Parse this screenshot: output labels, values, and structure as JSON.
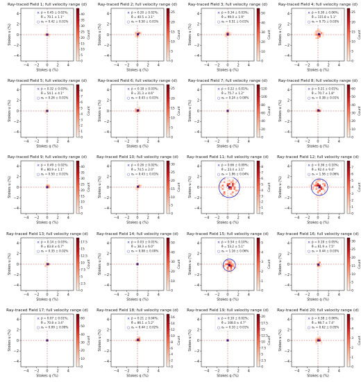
{
  "axis_labels": {
    "x": "Stokes q (%)",
    "y": "Stokes u (%)",
    "cbar": "Count"
  },
  "legend_symbols": {
    "pbar": "×",
    "sigma": "○"
  },
  "colors": {
    "accent_blue": "#1f2bbf",
    "guide_red": "#c44e4e",
    "cmap_low": "#fff5eb",
    "cmap_high": "#67000d"
  },
  "chart_data": [
    {
      "type": "heatmap",
      "title": "Ray-traced Field 1; full velocity range (d)",
      "xlim": [
        -5,
        5
      ],
      "ylim": [
        -5,
        5
      ],
      "xticks": [
        -4,
        -2,
        0,
        2,
        4
      ],
      "yticks": [
        -4,
        -2,
        0,
        2,
        4
      ],
      "cbar_ticks": [
        0,
        5,
        10,
        15,
        20,
        25,
        30,
        35,
        40
      ],
      "cbar_max": 45,
      "center_q": 0.0,
      "center_u": 0.0,
      "spread": 0.35,
      "nblobs": 14,
      "legend": [
        "p̄ = 0.45 ± 0.02%;",
        "θ̄ = 70.1 ± 1.1°",
        "σₚ = 0.42 ± 0.01%"
      ]
    },
    {
      "type": "heatmap",
      "title": "Ray-traced Field 2; full velocity range (d)",
      "xlim": [
        -5,
        5
      ],
      "ylim": [
        -5,
        5
      ],
      "xticks": [
        -4,
        -2,
        0,
        2,
        4
      ],
      "yticks": [
        -4,
        -2,
        0,
        2,
        4
      ],
      "cbar_ticks": [
        0,
        5,
        10,
        15,
        20,
        25
      ],
      "cbar_max": 27,
      "center_q": 0.1,
      "center_u": 0.1,
      "spread": 0.45,
      "nblobs": 16,
      "legend": [
        "p̄ = 0.20 ± 0.02%;",
        "θ̄ = 40.5 ± 3.1°",
        "σₚ = 0.50 ± 0.01%"
      ]
    },
    {
      "type": "heatmap",
      "title": "Ray-traced Field 3; full velocity range (d)",
      "xlim": [
        -5,
        5
      ],
      "ylim": [
        -5,
        5
      ],
      "xticks": [
        -4,
        -2,
        0,
        2,
        4
      ],
      "yticks": [
        -4,
        -2,
        0,
        2,
        4
      ],
      "cbar_ticks": [
        0,
        10,
        20,
        30,
        40,
        50
      ],
      "cbar_max": 55,
      "center_q": 0.0,
      "center_u": 0.1,
      "spread": 0.45,
      "nblobs": 16,
      "legend": [
        "p̄ = 0.34 ± 0.03%;",
        "θ̄ = 99.0 ± 1.9°",
        "σₚ = 0.51 ± 0.01%"
      ]
    },
    {
      "type": "heatmap",
      "title": "Ray-traced Field 4; full velocity range (d)",
      "xlim": [
        -5,
        5
      ],
      "ylim": [
        -5,
        5
      ],
      "xticks": [
        -4,
        -2,
        0,
        2,
        4
      ],
      "yticks": [
        -4,
        -2,
        0,
        2,
        4
      ],
      "cbar_ticks": [
        0,
        5,
        10,
        15,
        20,
        25
      ],
      "cbar_max": 27,
      "center_q": 0.2,
      "center_u": 0.1,
      "spread": 0.75,
      "nblobs": 22,
      "legend": [
        "p̄ = 0.30 ± 0.06%;",
        "θ̄ = 115.8 ± 5.1°",
        "σₚ = 0.75 ± 0.03%"
      ]
    },
    {
      "type": "heatmap",
      "title": "Ray-traced Field 5; full velocity range (d)",
      "xlim": [
        -5,
        5
      ],
      "ylim": [
        -5,
        5
      ],
      "xticks": [
        -4,
        -2,
        0,
        2,
        4
      ],
      "yticks": [
        -4,
        -2,
        0,
        2,
        4
      ],
      "cbar_ticks": [
        0,
        1,
        2,
        3,
        4,
        5,
        6,
        7,
        8
      ],
      "cbar_max": 9,
      "center_q": 0.0,
      "center_u": 0.0,
      "spread": 0.25,
      "nblobs": 8,
      "legend": [
        "p̄ = 0.32 ± 0.03%;",
        "θ̄ = 54.1 ± 4.1°",
        "σₚ = 0.26 ± 0.01%"
      ]
    },
    {
      "type": "heatmap",
      "title": "Ray-traced Field 6; full velocity range (d)",
      "xlim": [
        -5,
        5
      ],
      "ylim": [
        -5,
        5
      ],
      "xticks": [
        -4,
        -2,
        0,
        2,
        4
      ],
      "yticks": [
        -4,
        -2,
        0,
        2,
        4
      ],
      "cbar_ticks": [
        0,
        5,
        10,
        15,
        20,
        25
      ],
      "cbar_max": 27,
      "center_q": 0.1,
      "center_u": 0.1,
      "spread": 0.4,
      "nblobs": 14,
      "legend": [
        "p̄ = 0.18 ± 0.03%;",
        "θ̄ = 21.3 ± 4.6°",
        "σₚ = 0.43 ± 0.01%"
      ]
    },
    {
      "type": "heatmap",
      "title": "Ray-traced Field 7; full velocity range (d)",
      "xlim": [
        -5,
        5
      ],
      "ylim": [
        -5,
        5
      ],
      "xticks": [
        -4,
        -2,
        0,
        2,
        4
      ],
      "yticks": [
        -4,
        -2,
        0,
        2,
        4
      ],
      "cbar_ticks": [
        0,
        20,
        40,
        60,
        80,
        100,
        120
      ],
      "cbar_max": 130,
      "center_q": 0.0,
      "center_u": 0.0,
      "spread": 0.25,
      "nblobs": 8,
      "legend": [
        "p̄ = 0.22 ± 0.01%;",
        "θ̄ = 75.7 ± 1.2°",
        "σₚ = 0.24 ± 0.00%"
      ]
    },
    {
      "type": "heatmap",
      "title": "Ray-traced Field 8; full velocity range (d)",
      "xlim": [
        -5,
        5
      ],
      "ylim": [
        -5,
        5
      ],
      "xticks": [
        -4,
        -2,
        0,
        2,
        4
      ],
      "yticks": [
        -4,
        -2,
        0,
        2,
        4
      ],
      "cbar_ticks": [
        0,
        10,
        20,
        30,
        40,
        50,
        60
      ],
      "cbar_max": 65,
      "center_q": 0.1,
      "center_u": 0.1,
      "spread": 0.35,
      "nblobs": 12,
      "legend": [
        "p̄ = 0.21 ± 0.01%;",
        "θ̄ = 70.7 ± 1.8°",
        "σₚ = 0.38 ± 0.01%"
      ]
    },
    {
      "type": "heatmap",
      "title": "Ray-traced Field 9; full velocity range (d)",
      "xlim": [
        -5,
        5
      ],
      "ylim": [
        -5,
        5
      ],
      "xticks": [
        -4,
        -2,
        0,
        2,
        4
      ],
      "yticks": [
        -4,
        -2,
        0,
        2,
        4
      ],
      "cbar_ticks": [
        0,
        5,
        10,
        15,
        20,
        25,
        30,
        35,
        40
      ],
      "cbar_max": 45,
      "center_q": 0.0,
      "center_u": 0.0,
      "spread": 0.45,
      "nblobs": 14,
      "legend": [
        "p̄ = 0.49 ± 0.02%;",
        "θ̄ = 80.9 ± 1.1°",
        "σₚ = 0.50 ± 0.01%"
      ]
    },
    {
      "type": "heatmap",
      "title": "Ray-traced Field 10; full velocity range (d)",
      "xlim": [
        -5,
        5
      ],
      "ylim": [
        -5,
        5
      ],
      "xticks": [
        -4,
        -2,
        0,
        2,
        4
      ],
      "yticks": [
        -4,
        -2,
        0,
        2,
        4
      ],
      "cbar_ticks": [
        0,
        5,
        10,
        15,
        20,
        25,
        30
      ],
      "cbar_max": 32,
      "center_q": 0.1,
      "center_u": 0.1,
      "spread": 0.4,
      "nblobs": 12,
      "legend": [
        "p̄ = 0.26 ± 0.02%;",
        "θ̄ = 74.5 ± 2.0°",
        "σₚ = 0.43 ± 0.01%"
      ]
    },
    {
      "type": "heatmap",
      "title": "Ray-traced Field 11; full velocity range (d)",
      "xlim": [
        -5,
        5
      ],
      "ylim": [
        -5,
        5
      ],
      "xticks": [
        -4,
        -2,
        0,
        2,
        4
      ],
      "yticks": [
        -4,
        -2,
        0,
        2,
        4
      ],
      "cbar_ticks": [
        0,
        1,
        2,
        3,
        4,
        5,
        6,
        7,
        8
      ],
      "cbar_max": 9,
      "center_q": 0.3,
      "center_u": 0.0,
      "spread": 1.9,
      "nblobs": 60,
      "circle_r": 1.96,
      "legend": [
        "p̄ = 0.66 ± 0.09%;",
        "θ̄ = 23.4 ± 3.1°",
        "σₚ = 1.96 ± 0.04%"
      ]
    },
    {
      "type": "heatmap",
      "title": "Ray-traced Field 12; full velocity range (d)",
      "xlim": [
        -5,
        5
      ],
      "ylim": [
        -5,
        5
      ],
      "xticks": [
        -4,
        -2,
        0,
        2,
        4
      ],
      "yticks": [
        -4,
        -2,
        0,
        2,
        4
      ],
      "cbar_ticks": [
        0,
        1,
        2,
        3,
        4,
        5,
        6,
        7
      ],
      "cbar_max": 8,
      "center_q": 0.3,
      "center_u": 0.0,
      "spread": 1.5,
      "nblobs": 50,
      "circle_r": 1.56,
      "legend": [
        "p̄ = 0.36 ± 0.10%;",
        "θ̄ = 92.4 ± 9.4°",
        "σₚ = 1.56 ± 0.06%"
      ]
    },
    {
      "type": "heatmap",
      "title": "Ray-traced Field 13; full velocity range (d)",
      "xlim": [
        -5,
        5
      ],
      "ylim": [
        -5,
        5
      ],
      "xticks": [
        -4,
        -2,
        0,
        2,
        4
      ],
      "yticks": [
        -4,
        -2,
        0,
        2,
        4
      ],
      "cbar_ticks": [
        0,
        2.5,
        5.0,
        7.5,
        10.0,
        12.5,
        15.0,
        17.5
      ],
      "cbar_max": 19,
      "center_q": 0.1,
      "center_u": 0.0,
      "spread": 0.35,
      "nblobs": 14,
      "legend": [
        "p̄ = 0.14 ± 0.03%;",
        "θ̄ = 83.8 ± 6.7°",
        "σₚ = 0.35 ± 0.02%"
      ]
    },
    {
      "type": "heatmap",
      "title": "Ray-traced Field 14; full velocity range (d)",
      "xlim": [
        -5,
        5
      ],
      "ylim": [
        -5,
        5
      ],
      "xticks": [
        -4,
        -2,
        0,
        2,
        4
      ],
      "yticks": [
        -4,
        -2,
        0,
        2,
        4
      ],
      "cbar_ticks": [
        0,
        10,
        20,
        30,
        40,
        50
      ],
      "cbar_max": 55,
      "center_q": 0.0,
      "center_u": 0.0,
      "spread": 0.12,
      "nblobs": 6,
      "legend": [
        "p̄ = 0.03 ± 0.01%;",
        "θ̄ = 38.3 ± 6.0°",
        "σₚ = 0.08 ± 0.00%"
      ]
    },
    {
      "type": "heatmap",
      "title": "Ray-traced Field 15; full velocity range (d)",
      "xlim": [
        -5,
        5
      ],
      "ylim": [
        -5,
        5
      ],
      "xticks": [
        -4,
        -2,
        0,
        2,
        4
      ],
      "yticks": [
        -4,
        -2,
        0,
        2,
        4
      ],
      "cbar_ticks": [
        0,
        1,
        2,
        3,
        4,
        5
      ],
      "cbar_max": 5.5,
      "center_q": 0.3,
      "center_u": -0.2,
      "spread": 1.15,
      "nblobs": 40,
      "circle_r": 1.16,
      "legend": [
        "p̄ = 0.54 ± 0.10%;",
        "θ̄ = 53.2 ± 5.1°",
        "σₚ = 1.16 ± 0.06%"
      ]
    },
    {
      "type": "heatmap",
      "title": "Ray-traced Field 16; full velocity range (d)",
      "xlim": [
        -5,
        5
      ],
      "ylim": [
        -5,
        5
      ],
      "xticks": [
        -4,
        -2,
        0,
        2,
        4
      ],
      "yticks": [
        -4,
        -2,
        0,
        2,
        4
      ],
      "cbar_ticks": [
        0,
        5,
        10,
        15,
        20,
        25,
        30
      ],
      "cbar_max": 32,
      "center_q": 0.1,
      "center_u": -0.1,
      "spread": 0.45,
      "nblobs": 14,
      "legend": [
        "p̄ = 0.19 ± 0.05%;",
        "θ̄ = 61.9 ± 7.5°",
        "σₚ = 0.44 ± 0.03%"
      ]
    },
    {
      "type": "heatmap",
      "title": "Ray-traced Field 17; full velocity range (d)",
      "xlim": [
        -5,
        5
      ],
      "ylim": [
        -5,
        5
      ],
      "xticks": [
        -4,
        -2,
        0,
        2,
        4
      ],
      "yticks": [
        -4,
        -2,
        0,
        2,
        4
      ],
      "cbar_ticks": [
        0,
        10,
        20,
        30,
        40,
        50,
        60
      ],
      "cbar_max": 65,
      "center_q": 0.0,
      "center_u": 0.0,
      "spread": 0.12,
      "nblobs": 6,
      "legend": [
        "p̄ = 0.07 ± 0.01%;",
        "θ̄ = 70.8 ± 3.4°",
        "σₚ = 0.09 ± 0.00%"
      ]
    },
    {
      "type": "heatmap",
      "title": "Ray-traced Field 18; full velocity range (d)",
      "xlim": [
        -5,
        5
      ],
      "ylim": [
        -5,
        5
      ],
      "xticks": [
        -4,
        -2,
        0,
        2,
        4
      ],
      "yticks": [
        -4,
        -2,
        0,
        2,
        4
      ],
      "cbar_ticks": [
        0,
        2,
        4,
        6,
        8,
        10,
        12,
        14,
        16
      ],
      "cbar_max": 17,
      "center_q": 0.1,
      "center_u": 0.1,
      "spread": 0.45,
      "nblobs": 16,
      "legend": [
        "p̄ = 0.21 ± 0.04%;",
        "θ̄ = 86.1 ± 5.2°",
        "σₚ = 0.44 ± 0.02%"
      ]
    },
    {
      "type": "heatmap",
      "title": "Ray-traced Field 19; full velocity range (d)",
      "xlim": [
        -5,
        5
      ],
      "ylim": [
        -5,
        5
      ],
      "xticks": [
        -4,
        -2,
        0,
        2,
        4
      ],
      "yticks": [
        -4,
        -2,
        0,
        2,
        4
      ],
      "cbar_ticks": [
        0,
        2.5,
        5.0,
        7.5,
        10.0,
        12.5,
        15.0,
        17.5,
        20.0
      ],
      "cbar_max": 21,
      "center_q": 0.0,
      "center_u": 0.0,
      "spread": 0.12,
      "nblobs": 6,
      "legend": [
        "p̄ = 0.10 ± 0.02%;",
        "θ̄ = 108.0 ± 4.7°",
        "σₚ = 0.10 ± 0.01%"
      ]
    },
    {
      "type": "heatmap",
      "title": "Ray-traced Field 20; full velocity range (d)",
      "xlim": [
        -5,
        5
      ],
      "ylim": [
        -5,
        5
      ],
      "xticks": [
        -4,
        -2,
        0,
        2,
        4
      ],
      "yticks": [
        -4,
        -2,
        0,
        2,
        4
      ],
      "cbar_ticks": [
        0,
        1,
        2,
        3,
        4,
        5
      ],
      "cbar_max": 5.5,
      "center_q": 0.1,
      "center_u": 0.0,
      "spread": 0.6,
      "nblobs": 22,
      "legend": [
        "p̄ = 0.38 ± 0.06%;",
        "θ̄ = 98.7 ± 7.4°",
        "σₚ = 0.62 ± 0.05%"
      ]
    }
  ]
}
